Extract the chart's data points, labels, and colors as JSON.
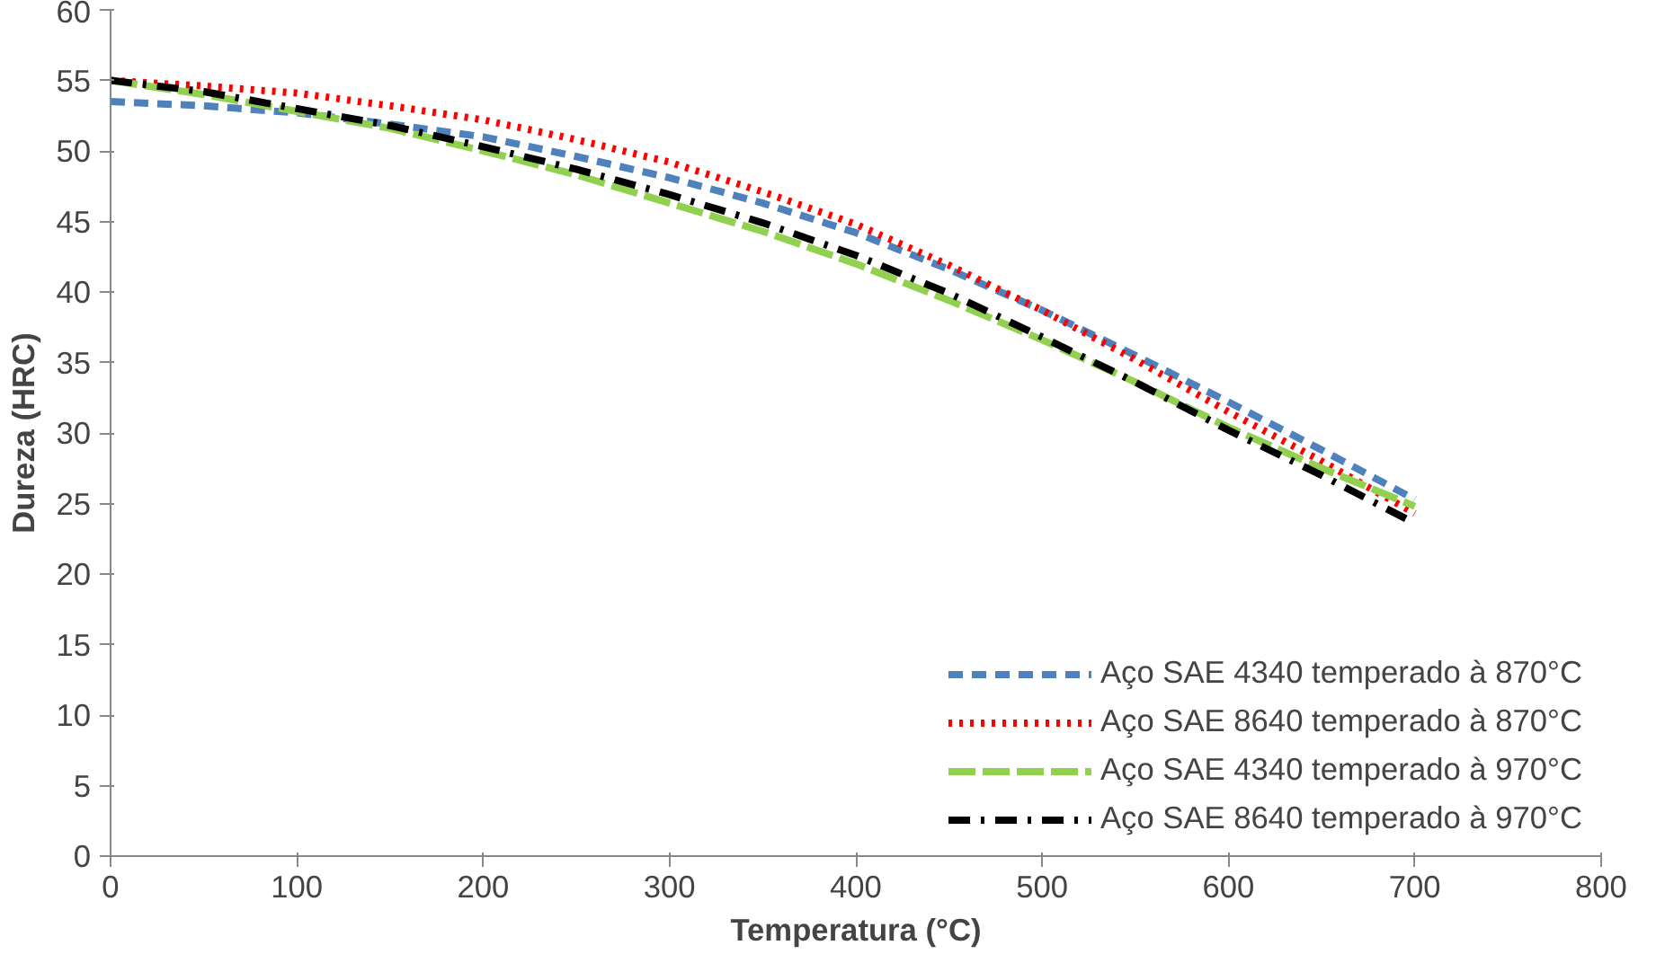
{
  "chart_data": {
    "type": "line",
    "xlabel": "Temperatura (°C)",
    "ylabel": "Dureza (HRC)",
    "x": [
      0,
      50,
      100,
      150,
      200,
      250,
      300,
      350,
      400,
      450,
      500,
      550,
      600,
      650,
      700
    ],
    "xlim": [
      0,
      800
    ],
    "xticks": [
      0,
      100,
      200,
      300,
      400,
      500,
      600,
      700,
      800
    ],
    "ylim": [
      0,
      60
    ],
    "yticks": [
      0,
      5,
      10,
      15,
      20,
      25,
      30,
      35,
      40,
      45,
      50,
      55,
      60
    ],
    "legend": "bottom right",
    "marker": "none",
    "series": [
      {
        "name": "Aço SAE 4340 temperado à 870°C",
        "color": "#4f81bd",
        "line_style": "dashed",
        "values": [
          53.5,
          53.2,
          52.7,
          51.9,
          51.0,
          49.6,
          48.1,
          46.3,
          44.2,
          41.6,
          38.7,
          35.5,
          32.2,
          28.8,
          25.3
        ]
      },
      {
        "name": "Aço SAE 8640 temperado à 870°C",
        "color": "#ff0000",
        "line_style": "dotted",
        "values": [
          55.0,
          54.6,
          54.1,
          53.2,
          52.2,
          50.8,
          49.2,
          47.1,
          44.8,
          41.9,
          38.7,
          35.2,
          31.5,
          28.0,
          24.3
        ]
      },
      {
        "name": "Aço SAE 4340 temperado à 970°C",
        "color": "#92d050",
        "line_style": "longdash",
        "values": [
          55.0,
          54.0,
          52.8,
          51.6,
          50.0,
          48.3,
          46.3,
          44.3,
          42.0,
          39.4,
          36.6,
          33.6,
          30.4,
          27.5,
          24.8
        ]
      },
      {
        "name": "Aço SAE 8640 temperado à 970°C",
        "color": "#000000",
        "line_style": "dashdot",
        "values": [
          55.0,
          54.2,
          53.0,
          51.8,
          50.3,
          48.7,
          46.9,
          44.9,
          42.6,
          39.9,
          36.8,
          33.6,
          30.2,
          27.0,
          23.6
        ]
      }
    ]
  }
}
